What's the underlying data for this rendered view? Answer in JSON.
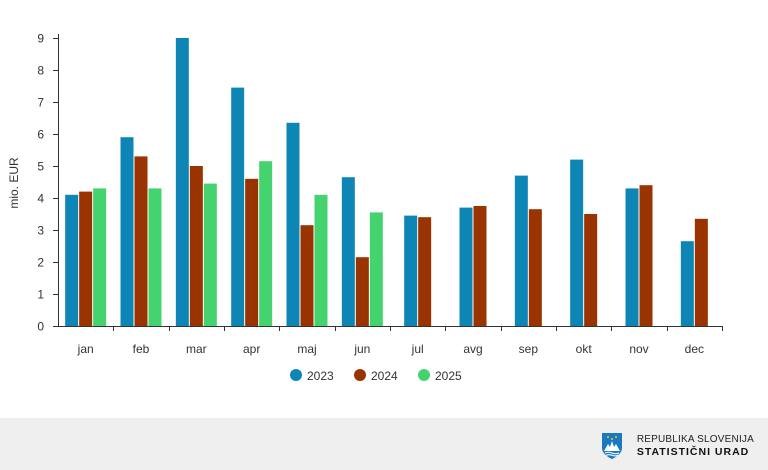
{
  "chart_data": {
    "type": "bar",
    "categories": [
      "jan",
      "feb",
      "mar",
      "apr",
      "maj",
      "jun",
      "jul",
      "avg",
      "sep",
      "okt",
      "nov",
      "dec"
    ],
    "series": [
      {
        "name": "2023",
        "color": "#0e86b5",
        "values": [
          4.1,
          5.9,
          9.0,
          7.45,
          6.35,
          4.65,
          3.45,
          3.7,
          4.7,
          5.2,
          4.3,
          2.65
        ]
      },
      {
        "name": "2024",
        "color": "#993300",
        "values": [
          4.2,
          5.3,
          5.0,
          4.6,
          3.15,
          2.15,
          3.4,
          3.75,
          3.65,
          3.5,
          4.4,
          3.35
        ]
      },
      {
        "name": "2025",
        "color": "#44d36e",
        "values": [
          4.3,
          4.3,
          4.45,
          5.15,
          4.1,
          3.55,
          null,
          null,
          null,
          null,
          null,
          null
        ]
      }
    ],
    "yticks": [
      0,
      1,
      2,
      3,
      4,
      5,
      6,
      7,
      8,
      9
    ],
    "ylim": [
      0,
      9
    ],
    "ylabel": "mio. EUR",
    "xlabel": "",
    "legend_position": "bottom-center",
    "grid": false
  },
  "footer": {
    "logo_icon": "slovenia-coat-of-arms-icon",
    "logo_line1": "REPUBLIKA SLOVENIJA",
    "logo_line2": "STATISTIČNI URAD"
  }
}
